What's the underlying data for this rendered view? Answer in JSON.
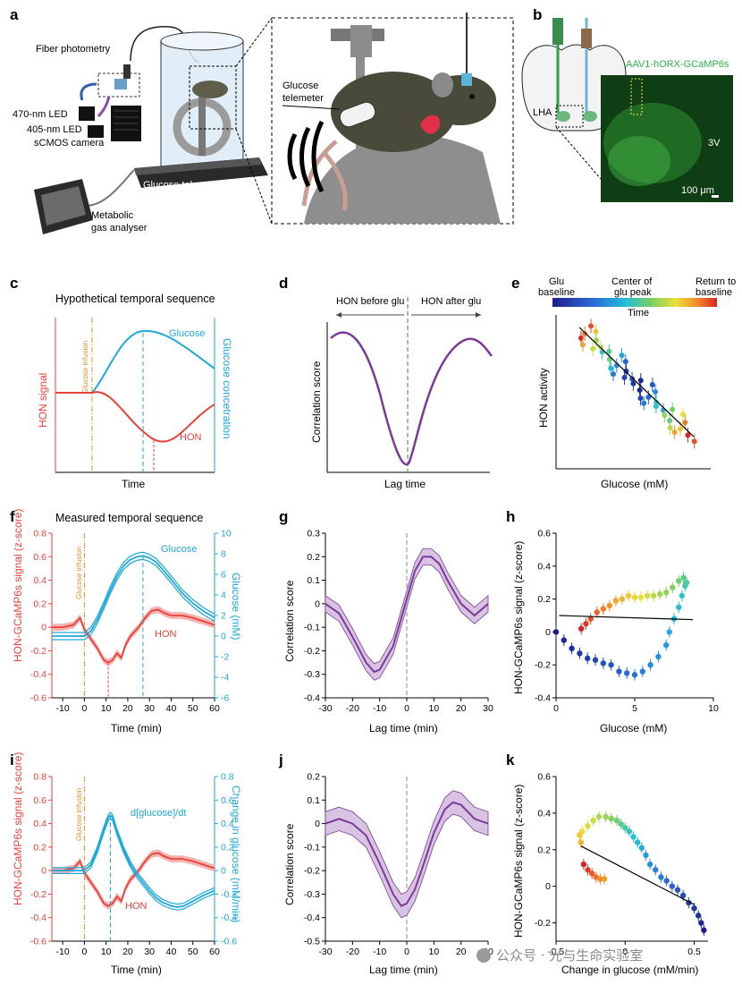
{
  "panels": [
    "a",
    "b",
    "c",
    "d",
    "e",
    "f",
    "g",
    "h",
    "i",
    "j",
    "k"
  ],
  "colors": {
    "hon": "#e8423c",
    "glucose": "#1fa8d8",
    "infusion": "#e0902a",
    "corr": "#7a3a96",
    "corr_fill": "#d8c3e3"
  },
  "a": {
    "fiber": "Fiber photometry",
    "led470": "470-nm LED",
    "led405": "405-nm LED",
    "camera": "sCMOS camera",
    "telemetry": "Glucose telemetry",
    "gas1": "Metabolic",
    "gas2": "gas analyser",
    "tele1": "Glucose",
    "tele2": "telemeter"
  },
  "b": {
    "virus": "AAV1-hORX-GCaMP6s",
    "lha": "LHA",
    "v3": "3V",
    "scale": "100 μm"
  },
  "c": {
    "title": "Hypothetical temporal sequence",
    "glucose": "Glucose",
    "hon": "HON",
    "ylabel_left": "HON signal",
    "ylabel_right": "Glucose concetration",
    "xlabel": "Time",
    "infusion": "Glucose infusion"
  },
  "d": {
    "left": "HON before glu",
    "right": "HON after glu",
    "ylabel": "Correlation score",
    "xlabel": "Lag time"
  },
  "e": {
    "glu_baseline_1": "Glu",
    "glu_baseline_2": "baseline",
    "center_1": "Center of",
    "center_2": "glu peak",
    "return_1": "Return to",
    "return_2": "baseline",
    "time": "Time",
    "ylabel": "HON activity",
    "xlabel": "Glucose (mM)"
  },
  "f": {
    "title": "Measured temporal sequence",
    "ylabel_left": "HON-GCaMP6s signal (z-score)",
    "ylabel_right": "Glucose (mM)",
    "xlabel": "Time (min)",
    "glucose": "Glucose",
    "hon": "HON",
    "infusion": "Glucose infusion"
  },
  "g": {
    "ylabel": "Correlation score",
    "xlabel": "Lag time (min)"
  },
  "h": {
    "ylabel": "HON-GCaMP6s signal (z-score)",
    "xlabel": "Glucose (mM)"
  },
  "i": {
    "ylabel_left": "HON-GCaMP6s signal (z-score)",
    "ylabel_right": "Change in glucose (mM/min)",
    "xlabel": "Time (min)",
    "dglucose": "d[glucose]/dt",
    "hon": "HON",
    "infusion": "Glucose infusion"
  },
  "j": {
    "ylabel": "Correlation score",
    "xlabel": "Lag time (min)"
  },
  "k": {
    "ylabel": "HON-GCaMP6s signal (z-score)",
    "xlabel": "Change in glucose (mM/min)"
  },
  "watermark": "公众号 · 光与生命实验室",
  "chart_data": [
    {
      "panel": "f",
      "type": "line",
      "xlabel": "Time (min)",
      "x_ticks": [
        -10,
        0,
        10,
        20,
        30,
        40,
        50,
        60
      ],
      "xlim": [
        -15,
        60
      ],
      "ylim_left": [
        -0.6,
        0.8
      ],
      "y_ticks_left": [
        -0.6,
        -0.4,
        -0.2,
        0,
        0.2,
        0.4,
        0.6,
        0.8
      ],
      "ylim_right": [
        -6,
        10
      ],
      "y_ticks_right": [
        -6,
        -4,
        -2,
        0,
        2,
        4,
        6,
        8,
        10
      ],
      "series": [
        {
          "name": "HON",
          "x": [
            -15,
            -10,
            -5,
            -2,
            0,
            3,
            6,
            9,
            11,
            13,
            15,
            17,
            19,
            21,
            23,
            25,
            28,
            31,
            34,
            37,
            40,
            45,
            50,
            55,
            60
          ],
          "y": [
            0.0,
            0.0,
            0.02,
            0.08,
            -0.02,
            -0.1,
            -0.18,
            -0.28,
            -0.3,
            -0.28,
            -0.22,
            -0.26,
            -0.15,
            -0.08,
            -0.04,
            0.0,
            0.08,
            0.14,
            0.15,
            0.12,
            0.1,
            0.1,
            0.08,
            0.05,
            0.02
          ]
        },
        {
          "name": "Glucose",
          "x": [
            -15,
            -5,
            0,
            3,
            6,
            9,
            12,
            15,
            18,
            21,
            24,
            27,
            30,
            33,
            36,
            40,
            45,
            50,
            55,
            60
          ],
          "y": [
            0,
            0,
            0,
            0.5,
            1.6,
            3.0,
            4.5,
            5.8,
            6.8,
            7.4,
            7.7,
            7.8,
            7.6,
            7.2,
            6.5,
            5.5,
            4.2,
            3.2,
            2.4,
            1.8
          ]
        }
      ],
      "markers": {
        "infusion": 0,
        "hon_min": 11,
        "glucose_peak": 27
      }
    },
    {
      "panel": "g",
      "type": "line",
      "xlabel": "Lag time (min)",
      "ylabel": "Correlation score",
      "xlim": [
        -30,
        30
      ],
      "ylim": [
        -0.4,
        0.3
      ],
      "x_ticks": [
        -30,
        -20,
        -10,
        0,
        10,
        20,
        30
      ],
      "y_ticks": [
        -0.4,
        -0.3,
        -0.2,
        -0.1,
        0,
        0.1,
        0.2,
        0.3
      ],
      "series": [
        {
          "name": "correlation",
          "x": [
            -30,
            -25,
            -20,
            -15,
            -12,
            -10,
            -5,
            0,
            3,
            6,
            9,
            12,
            15,
            20,
            25,
            30
          ],
          "y": [
            0.0,
            -0.04,
            -0.14,
            -0.25,
            -0.29,
            -0.28,
            -0.18,
            0.02,
            0.14,
            0.2,
            0.2,
            0.17,
            0.1,
            0.0,
            -0.05,
            0.0
          ]
        }
      ]
    },
    {
      "panel": "h",
      "type": "scatter",
      "xlabel": "Glucose (mM)",
      "ylabel": "HON-GCaMP6s signal (z-score)",
      "xlim": [
        0,
        10
      ],
      "ylim": [
        -0.4,
        0.6
      ],
      "x_ticks": [
        0,
        5,
        10
      ],
      "y_ticks": [
        -0.4,
        -0.2,
        0,
        0.2,
        0.4,
        0.6
      ],
      "series": [
        {
          "name": "time-colored points",
          "x": [
            0,
            0.5,
            1,
            1.5,
            2,
            2.5,
            3,
            3.5,
            4,
            4.5,
            5,
            5.5,
            6,
            6.5,
            7,
            7.2,
            7.5,
            7.8,
            8,
            8.2,
            8.3,
            8.1,
            7.8,
            7.4,
            7,
            6.6,
            6.2,
            5.8,
            5.4,
            5,
            4.6,
            4.2,
            3.8,
            3.4,
            3,
            2.6,
            2.2,
            1.9,
            1.6
          ],
          "y": [
            0,
            -0.05,
            -0.1,
            -0.13,
            -0.16,
            -0.17,
            -0.19,
            -0.2,
            -0.24,
            -0.25,
            -0.26,
            -0.24,
            -0.2,
            -0.15,
            -0.08,
            0,
            0.08,
            0.15,
            0.22,
            0.28,
            0.3,
            0.33,
            0.31,
            0.27,
            0.24,
            0.23,
            0.22,
            0.22,
            0.21,
            0.21,
            0.22,
            0.2,
            0.19,
            0.16,
            0.14,
            0.12,
            0.08,
            0.05,
            0.02
          ]
        }
      ],
      "fit": {
        "x": [
          0.2,
          8.7
        ],
        "y": [
          0.1,
          0.075
        ]
      }
    },
    {
      "panel": "i",
      "type": "line",
      "xlabel": "Time (min)",
      "x_ticks": [
        -10,
        0,
        10,
        20,
        30,
        40,
        50,
        60
      ],
      "xlim": [
        -15,
        60
      ],
      "ylim_left": [
        -0.6,
        0.8
      ],
      "y_ticks_left": [
        -0.6,
        -0.4,
        -0.2,
        0,
        0.2,
        0.4,
        0.6,
        0.8
      ],
      "ylim_right": [
        -0.6,
        0.8
      ],
      "y_ticks_right": [
        -0.6,
        -0.4,
        -0.2,
        0,
        0.2,
        0.4,
        0.6,
        0.8
      ],
      "series": [
        {
          "name": "HON",
          "x": [
            -15,
            -10,
            -5,
            -2,
            0,
            3,
            6,
            9,
            11,
            13,
            15,
            17,
            19,
            21,
            23,
            25,
            28,
            31,
            34,
            37,
            40,
            45,
            50,
            55,
            60
          ],
          "y": [
            0.0,
            0.0,
            0.02,
            0.08,
            -0.02,
            -0.1,
            -0.18,
            -0.28,
            -0.3,
            -0.28,
            -0.22,
            -0.26,
            -0.15,
            -0.08,
            -0.04,
            0.0,
            0.08,
            0.14,
            0.15,
            0.12,
            0.1,
            0.1,
            0.08,
            0.05,
            0.02
          ]
        },
        {
          "name": "d[glucose]/dt",
          "x": [
            -15,
            -5,
            0,
            3,
            6,
            9,
            11,
            12,
            13,
            15,
            18,
            21,
            24,
            27,
            30,
            33,
            36,
            40,
            43,
            46,
            50,
            55,
            60
          ],
          "y": [
            0,
            0,
            0,
            0.05,
            0.18,
            0.35,
            0.45,
            0.47,
            0.45,
            0.33,
            0.18,
            0.06,
            -0.03,
            -0.1,
            -0.17,
            -0.23,
            -0.27,
            -0.3,
            -0.31,
            -0.3,
            -0.26,
            -0.21,
            -0.17
          ]
        }
      ],
      "markers": {
        "infusion": 0,
        "dglucose_peak": 12
      }
    },
    {
      "panel": "j",
      "type": "line",
      "xlabel": "Lag time (min)",
      "ylabel": "Correlation score",
      "xlim": [
        -30,
        30
      ],
      "ylim": [
        -0.5,
        0.2
      ],
      "x_ticks": [
        -30,
        -20,
        -10,
        0,
        10,
        20,
        30
      ],
      "y_ticks": [
        -0.5,
        -0.4,
        -0.3,
        -0.2,
        -0.1,
        0,
        0.1,
        0.2
      ],
      "series": [
        {
          "name": "correlation",
          "x": [
            -30,
            -25,
            -20,
            -15,
            -10,
            -5,
            -2,
            0,
            3,
            6,
            10,
            14,
            17,
            20,
            25,
            30
          ],
          "y": [
            0.0,
            0.02,
            0.0,
            -0.05,
            -0.17,
            -0.3,
            -0.35,
            -0.34,
            -0.28,
            -0.18,
            -0.04,
            0.06,
            0.09,
            0.08,
            0.02,
            0.0
          ]
        }
      ]
    },
    {
      "panel": "k",
      "type": "scatter",
      "xlabel": "Change in glucose (mM/min)",
      "ylabel": "HON-GCaMP6s signal (z-score)",
      "xlim": [
        -0.5,
        0.6
      ],
      "ylim": [
        -0.3,
        0.6
      ],
      "x_ticks": [
        -0.5,
        0,
        0.5
      ],
      "x_tick_labels": [
        "-0.5",
        "0",
        "0.5"
      ],
      "y_ticks": [
        -0.2,
        0,
        0.2,
        0.4,
        0.6
      ],
      "series": [
        {
          "name": "time-colored points",
          "x": [
            -0.3,
            -0.27,
            -0.24,
            -0.21,
            -0.18,
            -0.15,
            -0.32,
            -0.33,
            -0.31,
            -0.27,
            -0.23,
            -0.19,
            -0.14,
            -0.1,
            -0.06,
            -0.03,
            0,
            0.03,
            0.06,
            0.09,
            0.12,
            0.15,
            0.18,
            0.22,
            0.26,
            0.3,
            0.34,
            0.38,
            0.42,
            0.46,
            0.5,
            0.53,
            0.55,
            0.57
          ],
          "y": [
            0.12,
            0.09,
            0.07,
            0.05,
            0.04,
            0.04,
            0.24,
            0.28,
            0.3,
            0.33,
            0.36,
            0.38,
            0.38,
            0.37,
            0.36,
            0.34,
            0.32,
            0.3,
            0.27,
            0.24,
            0.21,
            0.17,
            0.12,
            0.09,
            0.05,
            0.03,
            0.0,
            -0.02,
            -0.05,
            -0.09,
            -0.12,
            -0.16,
            -0.2,
            -0.24
          ]
        }
      ],
      "fit": {
        "x": [
          -0.32,
          0.5
        ],
        "y": [
          0.22,
          -0.1
        ]
      }
    }
  ]
}
